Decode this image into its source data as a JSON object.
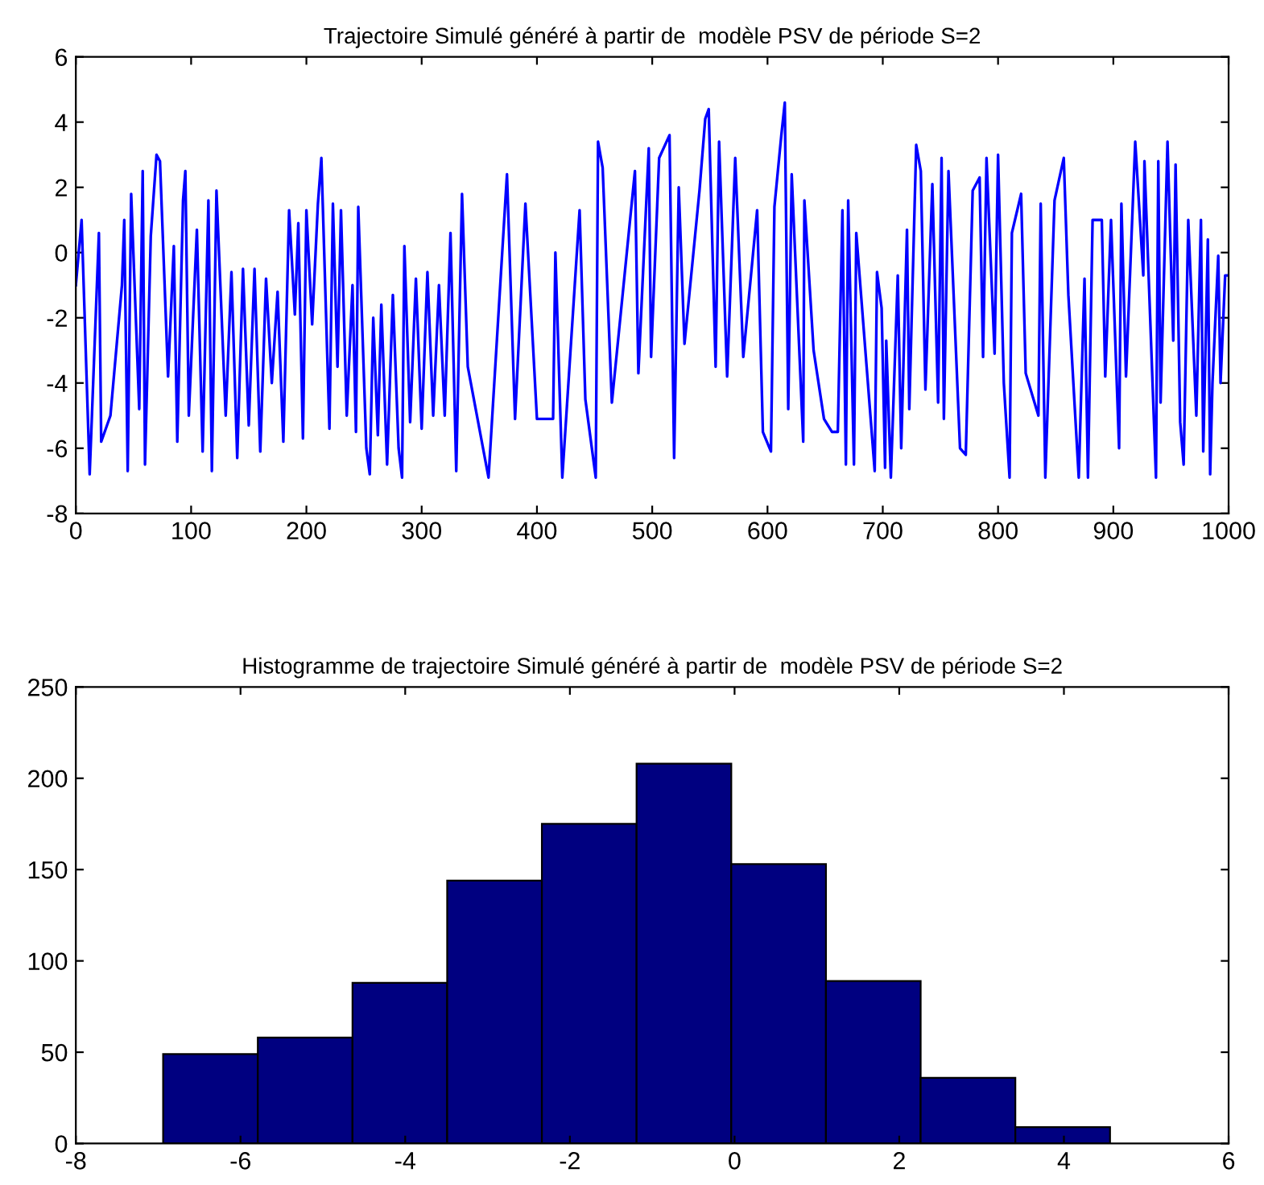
{
  "chart_data": [
    {
      "type": "line",
      "title": "Trajectoire Simulé généré à partir de  modèle PSV de période S=2",
      "color": "#0000ff",
      "x": [
        0,
        5,
        12,
        20,
        22,
        30,
        40,
        42,
        45,
        48,
        55,
        58,
        60,
        65,
        70,
        73,
        80,
        85,
        88,
        93,
        95,
        98,
        105,
        110,
        115,
        118,
        122,
        130,
        135,
        140,
        145,
        150,
        155,
        160,
        165,
        170,
        175,
        180,
        185,
        190,
        193,
        197,
        200,
        205,
        210,
        213,
        220,
        223,
        227,
        230,
        235,
        240,
        243,
        245,
        252,
        255,
        258,
        262,
        265,
        270,
        275,
        280,
        283,
        285,
        290,
        295,
        300,
        305,
        310,
        315,
        320,
        325,
        330,
        335,
        340,
        358,
        374,
        381,
        390,
        400,
        414,
        416,
        422,
        437,
        442,
        451,
        453,
        457,
        465,
        485,
        488,
        497,
        499,
        506,
        515,
        519,
        523,
        528,
        541,
        546,
        549,
        555,
        558,
        565,
        572,
        579,
        591,
        596,
        603,
        606,
        612,
        615,
        618,
        621,
        631,
        632,
        640,
        649,
        656,
        661,
        665,
        668,
        670,
        675,
        677,
        686,
        693,
        695,
        699,
        702,
        703,
        707,
        713,
        716,
        721,
        723,
        729,
        733,
        737,
        743,
        748,
        751,
        753,
        757,
        767,
        772,
        778,
        784,
        787,
        790,
        797,
        800,
        805,
        810,
        812,
        820,
        824,
        835,
        837,
        841,
        849,
        857,
        861,
        870,
        875,
        878,
        882,
        890,
        893,
        898,
        905,
        907,
        911,
        919,
        926,
        927,
        937,
        939,
        941,
        947,
        952,
        954,
        958,
        961,
        965,
        972,
        976,
        978,
        982,
        984,
        986,
        991,
        993,
        997,
        1000
      ],
      "values": [
        -1,
        1,
        -6.8,
        0.6,
        -5.8,
        -5,
        -1,
        1,
        -6.7,
        1.8,
        -4.8,
        2.5,
        -6.5,
        0.5,
        3,
        2.8,
        -3.8,
        0.2,
        -5.8,
        1.6,
        2.5,
        -5,
        0.7,
        -6.1,
        1.6,
        -6.7,
        1.9,
        -5,
        -0.6,
        -6.3,
        -0.5,
        -5.3,
        -0.5,
        -6.1,
        -0.8,
        -4,
        -1.2,
        -5.8,
        1.3,
        -1.9,
        0.9,
        -5.7,
        1.3,
        -2.2,
        1.5,
        2.9,
        -5.4,
        1.5,
        -3.5,
        1.3,
        -5,
        -1,
        -5.5,
        1.4,
        -6,
        -6.8,
        -2,
        -5.6,
        -1.6,
        -6.5,
        -1.3,
        -6,
        -6.9,
        0.2,
        -5.2,
        -0.8,
        -5.4,
        -0.6,
        -5,
        -1,
        -5,
        0.6,
        -6.7,
        1.8,
        -3.5,
        -6.9,
        2.4,
        -5.1,
        1.5,
        -5.1,
        -5.1,
        0,
        -6.9,
        1.3,
        -4.5,
        -6.9,
        3.4,
        2.6,
        -4.6,
        2.5,
        -3.7,
        3.2,
        -3.2,
        2.9,
        3.6,
        -6.3,
        2,
        -2.8,
        1.9,
        4.1,
        4.4,
        -3.5,
        3.4,
        -3.8,
        2.9,
        -3.2,
        1.3,
        -5.5,
        -6.1,
        1.4,
        3.6,
        4.6,
        -4.8,
        2.4,
        -5.8,
        1.6,
        -3,
        -5.1,
        -5.5,
        -5.5,
        1.3,
        -6.5,
        1.6,
        -6.5,
        0.6,
        -3.5,
        -6.7,
        -0.6,
        -1.7,
        -6.6,
        -2.7,
        -6.9,
        -0.7,
        -6,
        0.7,
        -4.8,
        3.3,
        2.5,
        -4.2,
        2.1,
        -4.6,
        2.9,
        -5.1,
        2.5,
        -6,
        -6.2,
        1.9,
        2.3,
        -3.2,
        2.9,
        -3.1,
        3,
        -4,
        -6.9,
        0.6,
        1.8,
        -3.7,
        -5,
        1.5,
        -6.9,
        1.6,
        2.9,
        -1.3,
        -6.9,
        -0.8,
        -6.9,
        1,
        1,
        -3.8,
        1,
        -6,
        1.5,
        -3.8,
        3.4,
        -0.7,
        2.8,
        -6.9,
        2.8,
        -4.6,
        3.4,
        -2.7,
        2.7,
        -5.2,
        -6.5,
        1,
        -5,
        1,
        -6.1,
        0.4,
        -6.8,
        -4,
        -0.1,
        -4,
        -0.7,
        -0.7
      ],
      "xlim": [
        0,
        1000
      ],
      "ylim": [
        -8,
        6
      ],
      "xticks": [
        0,
        100,
        200,
        300,
        400,
        500,
        600,
        700,
        800,
        900,
        1000
      ],
      "yticks": [
        -8,
        -6,
        -4,
        -2,
        0,
        2,
        4,
        6
      ],
      "grid": false
    },
    {
      "type": "histogram",
      "title": "Histogramme de trajectoire Simulé généré à partir de  modèle PSV de période S=2",
      "color": "#000080",
      "bins": [
        -6.94,
        -5.79,
        -4.64,
        -3.49,
        -2.34,
        -1.19,
        -0.04,
        1.11,
        2.26,
        3.41,
        4.56
      ],
      "values": [
        49,
        58,
        88,
        144,
        175,
        208,
        153,
        89,
        36,
        9
      ],
      "xlim": [
        -8,
        6
      ],
      "ylim": [
        0,
        250
      ],
      "xticks": [
        -8,
        -6,
        -4,
        -2,
        0,
        2,
        4,
        6
      ],
      "yticks": [
        0,
        50,
        100,
        150,
        200,
        250
      ],
      "grid": false
    }
  ]
}
